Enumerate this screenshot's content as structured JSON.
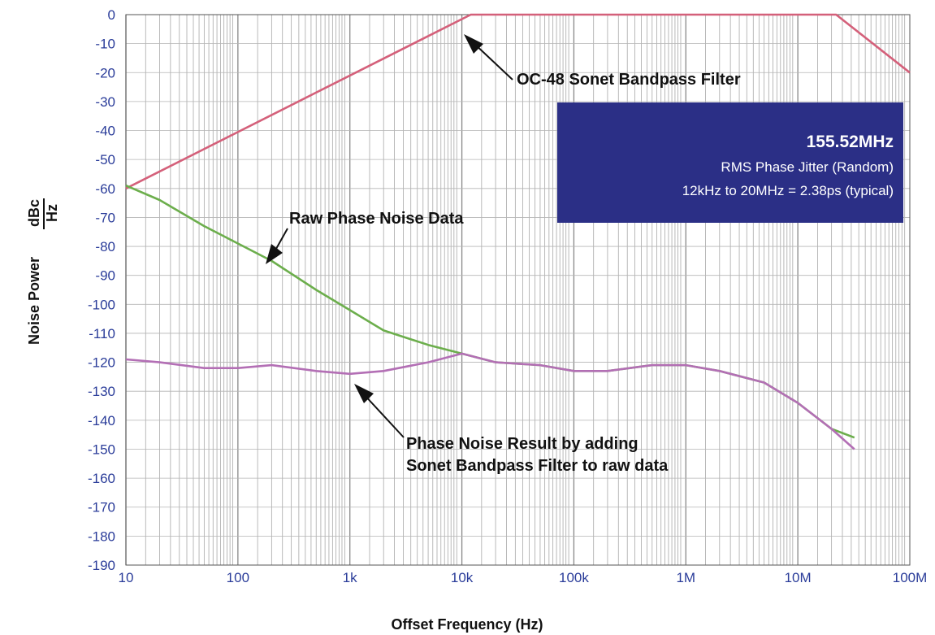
{
  "chart_data": {
    "type": "line",
    "x_scale": "log",
    "xlim": [
      10,
      100000000
    ],
    "ylim": [
      -190,
      0
    ],
    "grid": true,
    "y_ticks": [
      "0",
      "-10",
      "-20",
      "-30",
      "-40",
      "-50",
      "-60",
      "-70",
      "-80",
      "-90",
      "-100",
      "-110",
      "-120",
      "-130",
      "-140",
      "-150",
      "-160",
      "-170",
      "-180",
      "-190"
    ],
    "y_tick_values": [
      0,
      -10,
      -20,
      -30,
      -40,
      -50,
      -60,
      -70,
      -80,
      -90,
      -100,
      -110,
      -120,
      -130,
      -140,
      -150,
      -160,
      -170,
      -180,
      -190
    ],
    "x_ticks": [
      "10",
      "100",
      "1k",
      "10k",
      "100k",
      "1M",
      "10M",
      "100M"
    ],
    "x_tick_values": [
      10,
      100,
      1000,
      10000,
      100000,
      1000000,
      10000000,
      100000000
    ],
    "xlabel": "Offset Frequency (Hz)",
    "ylabel": "Noise Power",
    "ylabel_unit_num": "dBc",
    "ylabel_unit_den": "Hz",
    "series": [
      {
        "color": "#d4607a",
        "x": [
          10,
          12000,
          22000000,
          100000000
        ],
        "y": [
          -60,
          0,
          0,
          -20
        ]
      },
      {
        "color": "#6cae4c",
        "x": [
          10,
          20,
          50,
          100,
          200,
          500,
          1000,
          2000,
          5000,
          10000,
          20000,
          50000,
          100000,
          200000,
          500000,
          1000000,
          2000000,
          5000000,
          10000000,
          20000000,
          32000000
        ],
        "y": [
          -59,
          -64,
          -73,
          -79,
          -85,
          -95,
          -102,
          -109,
          -114,
          -117,
          -120,
          -121,
          -123,
          -123,
          -121,
          -121,
          -123,
          -127,
          -134,
          -143,
          -146
        ]
      },
      {
        "color": "#b36fb5",
        "x": [
          10,
          20,
          50,
          100,
          200,
          500,
          1000,
          2000,
          5000,
          10000,
          20000,
          50000,
          100000,
          200000,
          500000,
          1000000,
          2000000,
          5000000,
          10000000,
          20000000,
          32000000
        ],
        "y": [
          -119,
          -120,
          -122,
          -122,
          -121,
          -123,
          -124,
          -123,
          -120,
          -117,
          -120,
          -121,
          -123,
          -123,
          -121,
          -121,
          -123,
          -127,
          -134,
          -143,
          -150
        ]
      }
    ],
    "annotations": [
      {
        "text": "OC-48 Sonet Bandpass Filter"
      },
      {
        "text": "Raw Phase Noise Data"
      },
      {
        "text": "Phase Noise Result by adding"
      },
      {
        "text": "Sonet Bandpass Filter to raw data"
      }
    ],
    "info_box": {
      "title": "155.52MHz",
      "line1": "RMS Phase Jitter (Random)",
      "line2": "12kHz to 20MHz = 2.38ps (typical)",
      "background": "#2b2f86"
    }
  }
}
